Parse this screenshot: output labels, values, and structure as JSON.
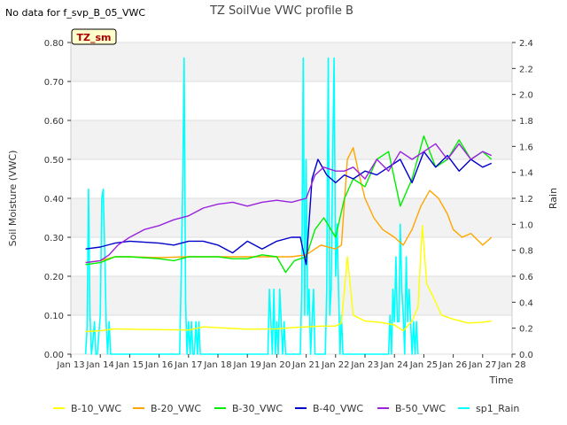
{
  "chart_data": {
    "type": "line",
    "title": "TZ SoilVue VWC profile B",
    "nodata_note": "No data for f_svp_B_05_VWC",
    "badge": "TZ_sm",
    "xlabel": "Time",
    "ylabel": "Soil Moisture (VWC)",
    "y2label": "Rain",
    "x_ticks": [
      "Jan 13",
      "Jan 14",
      "Jan 15",
      "Jan 16",
      "Jan 17",
      "Jan 18",
      "Jan 19",
      "Jan 20",
      "Jan 21",
      "Jan 22",
      "Jan 23",
      "Jan 24",
      "Jan 25",
      "Jan 26",
      "Jan 27",
      "Jan 28"
    ],
    "x_range_days": [
      13.0,
      28.0
    ],
    "ylim": [
      0.0,
      0.8
    ],
    "y_ticks": [
      "0.00",
      "0.10",
      "0.20",
      "0.30",
      "0.40",
      "0.50",
      "0.60",
      "0.70",
      "0.80"
    ],
    "y2lim": [
      0.0,
      2.4
    ],
    "y2_ticks": [
      "0.0",
      "0.2",
      "0.4",
      "0.6",
      "0.8",
      "1.0",
      "1.2",
      "1.4",
      "1.6",
      "1.8",
      "2.0",
      "2.2",
      "2.4"
    ],
    "series": [
      {
        "name": "B-10_VWC",
        "color": "#ffff00",
        "axis": "left",
        "x": [
          13.5,
          14.0,
          14.5,
          15.0,
          16.0,
          17.0,
          17.5,
          18.0,
          19.0,
          20.0,
          20.5,
          21.0,
          21.5,
          22.0,
          22.2,
          22.4,
          22.6,
          23.0,
          23.5,
          24.0,
          24.3,
          24.6,
          24.8,
          24.95,
          25.1,
          25.3,
          25.6,
          26.0,
          26.5,
          27.0,
          27.3
        ],
        "values": [
          0.058,
          0.06,
          0.065,
          0.064,
          0.063,
          0.062,
          0.07,
          0.068,
          0.064,
          0.065,
          0.068,
          0.07,
          0.072,
          0.072,
          0.08,
          0.25,
          0.1,
          0.085,
          0.082,
          0.075,
          0.06,
          0.085,
          0.12,
          0.33,
          0.18,
          0.15,
          0.1,
          0.09,
          0.08,
          0.082,
          0.085
        ]
      },
      {
        "name": "B-20_VWC",
        "color": "#ffa500",
        "axis": "left",
        "x": [
          13.5,
          14.0,
          14.5,
          15.0,
          16.0,
          17.0,
          18.0,
          19.0,
          20.0,
          20.5,
          21.0,
          21.5,
          22.0,
          22.2,
          22.4,
          22.6,
          22.8,
          23.0,
          23.3,
          23.6,
          24.0,
          24.3,
          24.6,
          24.9,
          25.2,
          25.5,
          25.8,
          26.0,
          26.3,
          26.6,
          27.0,
          27.3
        ],
        "values": [
          0.235,
          0.24,
          0.25,
          0.25,
          0.248,
          0.25,
          0.25,
          0.25,
          0.25,
          0.25,
          0.255,
          0.28,
          0.27,
          0.28,
          0.5,
          0.53,
          0.46,
          0.4,
          0.35,
          0.32,
          0.3,
          0.28,
          0.32,
          0.38,
          0.42,
          0.4,
          0.36,
          0.32,
          0.3,
          0.31,
          0.28,
          0.3
        ]
      },
      {
        "name": "B-30_VWC",
        "color": "#00ee00",
        "axis": "left",
        "x": [
          13.5,
          14.0,
          14.5,
          15.0,
          16.0,
          16.5,
          17.0,
          17.5,
          18.0,
          18.5,
          19.0,
          19.5,
          20.0,
          20.3,
          20.6,
          21.0,
          21.3,
          21.6,
          22.0,
          22.3,
          22.6,
          23.0,
          23.4,
          23.8,
          24.2,
          24.6,
          25.0,
          25.4,
          25.8,
          26.2,
          26.6,
          27.0,
          27.3
        ],
        "values": [
          0.23,
          0.235,
          0.25,
          0.25,
          0.245,
          0.24,
          0.25,
          0.25,
          0.25,
          0.245,
          0.245,
          0.255,
          0.25,
          0.21,
          0.24,
          0.25,
          0.32,
          0.35,
          0.3,
          0.4,
          0.45,
          0.43,
          0.5,
          0.52,
          0.38,
          0.45,
          0.56,
          0.48,
          0.5,
          0.55,
          0.5,
          0.52,
          0.5
        ]
      },
      {
        "name": "B-40_VWC",
        "color": "#0000cc",
        "axis": "left",
        "x": [
          13.5,
          14.0,
          14.5,
          15.0,
          16.0,
          16.5,
          17.0,
          17.5,
          18.0,
          18.5,
          19.0,
          19.5,
          20.0,
          20.5,
          20.8,
          21.0,
          21.2,
          21.4,
          21.7,
          22.0,
          22.3,
          22.6,
          23.0,
          23.4,
          23.8,
          24.2,
          24.6,
          25.0,
          25.4,
          25.8,
          26.2,
          26.6,
          27.0,
          27.3
        ],
        "values": [
          0.27,
          0.275,
          0.285,
          0.29,
          0.285,
          0.28,
          0.29,
          0.29,
          0.28,
          0.26,
          0.29,
          0.27,
          0.29,
          0.3,
          0.3,
          0.23,
          0.45,
          0.5,
          0.46,
          0.44,
          0.46,
          0.45,
          0.47,
          0.46,
          0.48,
          0.5,
          0.44,
          0.52,
          0.48,
          0.51,
          0.47,
          0.5,
          0.48,
          0.49
        ]
      },
      {
        "name": "B-50_VWC",
        "color": "#9922dd",
        "axis": "left",
        "x": [
          13.5,
          14.0,
          14.3,
          14.6,
          15.0,
          15.5,
          16.0,
          16.5,
          17.0,
          17.5,
          18.0,
          18.5,
          19.0,
          19.5,
          20.0,
          20.5,
          21.0,
          21.3,
          21.6,
          22.0,
          22.3,
          22.6,
          23.0,
          23.4,
          23.8,
          24.2,
          24.6,
          25.0,
          25.4,
          25.8,
          26.2,
          26.6,
          27.0,
          27.3
        ],
        "values": [
          0.235,
          0.24,
          0.255,
          0.28,
          0.3,
          0.32,
          0.33,
          0.345,
          0.355,
          0.375,
          0.385,
          0.39,
          0.38,
          0.39,
          0.395,
          0.39,
          0.4,
          0.46,
          0.48,
          0.47,
          0.47,
          0.48,
          0.45,
          0.5,
          0.47,
          0.52,
          0.5,
          0.52,
          0.54,
          0.5,
          0.54,
          0.5,
          0.52,
          0.51
        ]
      },
      {
        "name": "sp1_Rain",
        "color": "#00ffff",
        "axis": "right",
        "x": [
          13.5,
          13.55,
          13.6,
          13.65,
          13.7,
          13.75,
          13.8,
          13.85,
          13.9,
          14.0,
          14.05,
          14.1,
          14.15,
          14.2,
          14.25,
          14.3,
          14.35,
          14.4,
          14.5,
          16.7,
          16.75,
          16.8,
          16.85,
          16.9,
          16.95,
          17.0,
          17.05,
          17.1,
          17.15,
          17.2,
          17.25,
          17.3,
          17.35,
          17.4,
          19.7,
          19.75,
          19.8,
          19.85,
          19.9,
          19.95,
          20.0,
          20.05,
          20.1,
          20.15,
          20.2,
          20.25,
          20.3,
          20.8,
          20.85,
          20.9,
          20.95,
          21.0,
          21.05,
          21.1,
          21.15,
          21.2,
          21.25,
          21.3,
          21.35,
          21.4,
          21.45,
          21.5,
          21.55,
          21.6,
          21.65,
          21.7,
          21.75,
          21.8,
          21.85,
          21.9,
          21.95,
          22.0,
          22.05,
          22.1,
          22.15,
          22.2,
          22.25,
          22.3,
          23.8,
          23.85,
          23.9,
          23.95,
          24.0,
          24.05,
          24.1,
          24.15,
          24.2,
          24.25,
          24.3,
          24.35,
          24.4,
          24.45,
          24.5,
          24.55,
          24.6,
          24.65,
          24.7,
          24.75,
          24.8
        ],
        "values": [
          0.0,
          0.2,
          1.27,
          0.3,
          0.0,
          0.1,
          0.25,
          0.0,
          0.0,
          0.3,
          1.2,
          1.27,
          0.8,
          0.25,
          0.0,
          0.25,
          0.0,
          0.0,
          0.0,
          0.0,
          0.6,
          1.28,
          2.28,
          0.4,
          0.0,
          0.25,
          0.0,
          0.25,
          0.0,
          0.0,
          0.25,
          0.0,
          0.25,
          0.0,
          0.0,
          0.5,
          0.25,
          0.0,
          0.5,
          0.0,
          0.25,
          0.0,
          0.5,
          0.25,
          0.0,
          0.25,
          0.0,
          0.0,
          0.5,
          2.28,
          0.3,
          1.5,
          0.3,
          0.5,
          0.0,
          0.25,
          0.5,
          0.0,
          0.0,
          0.0,
          0.0,
          0.0,
          0.0,
          0.0,
          0.0,
          0.5,
          2.28,
          0.3,
          0.5,
          1.5,
          2.28,
          0.6,
          1.0,
          0.5,
          0.0,
          0.3,
          0.0,
          0.0,
          0.0,
          0.3,
          0.0,
          0.5,
          0.25,
          0.75,
          0.25,
          0.25,
          1.0,
          0.5,
          0.3,
          0.0,
          0.75,
          0.25,
          0.5,
          0.25,
          0.0,
          0.25,
          0.0,
          0.25,
          0.0
        ]
      }
    ]
  }
}
